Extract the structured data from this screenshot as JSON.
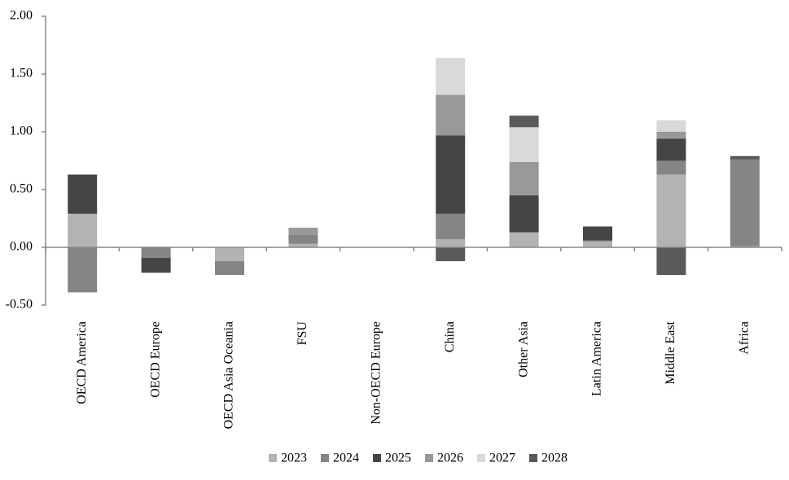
{
  "chart_data": {
    "type": "stacked-bar",
    "categories": [
      "OECD America",
      "OECD Europe",
      "OECD Asia Oceania",
      "FSU",
      "Non-OECD Europe",
      "China",
      "Other Asia",
      "Latin America",
      "Middle East",
      "Africa"
    ],
    "series": [
      {
        "name": "2023",
        "color": "#b3b3b3",
        "values": [
          0.29,
          0,
          -0.12,
          0.03,
          0,
          0.07,
          0.13,
          0.05,
          0.63,
          0.01
        ]
      },
      {
        "name": "2024",
        "color": "#858585",
        "values": [
          -0.39,
          -0.09,
          -0.12,
          0.08,
          0,
          0.22,
          0,
          0.01,
          0.12,
          0.75
        ]
      },
      {
        "name": "2025",
        "color": "#454545",
        "values": [
          0.34,
          -0.13,
          0,
          0,
          0,
          0.68,
          0.32,
          0.12,
          0.19,
          0
        ]
      },
      {
        "name": "2026",
        "color": "#999999",
        "values": [
          0,
          0,
          0,
          0.06,
          0,
          0.35,
          0.29,
          0,
          0.06,
          0
        ]
      },
      {
        "name": "2027",
        "color": "#d9d9d9",
        "values": [
          0,
          0,
          0,
          0,
          0,
          0.32,
          0.3,
          0,
          0.1,
          0
        ]
      },
      {
        "name": "2028",
        "color": "#5a5a5a",
        "values": [
          0,
          0,
          0,
          0,
          0,
          -0.12,
          0.1,
          0,
          -0.24,
          0.03
        ]
      }
    ],
    "ylim": [
      -0.5,
      2.0
    ],
    "yticks": [
      {
        "value": -0.5,
        "label": "-0.50"
      },
      {
        "value": 0,
        "label": "0.00"
      },
      {
        "value": 0.5,
        "label": "0.50"
      },
      {
        "value": 1.0,
        "label": "1.00"
      },
      {
        "value": 1.5,
        "label": "1.50"
      },
      {
        "value": 2.0,
        "label": "2.00"
      }
    ],
    "legend": "bottom"
  }
}
